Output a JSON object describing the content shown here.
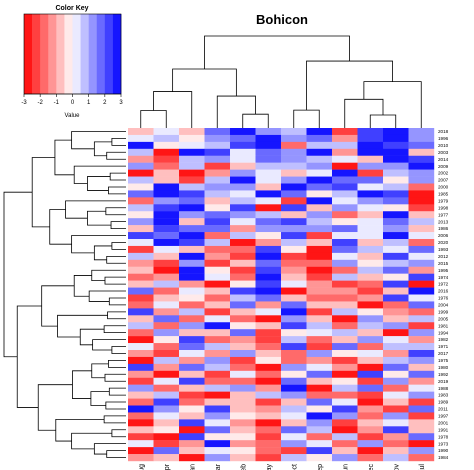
{
  "chart_data": {
    "type": "heatmap",
    "title": "Bohicon",
    "color_key": {
      "title": "Color Key",
      "value_label": "Value",
      "ticks": [
        "-3",
        "-2",
        "-1",
        "0",
        "1",
        "2",
        "3"
      ],
      "range": [
        -3,
        3
      ],
      "low_color": "#ff0000",
      "mid_color": "#ffffff",
      "high_color": "#0000ff"
    },
    "columns": [
      "aug",
      "apr",
      "jan",
      "mar",
      "feb",
      "may",
      "oct",
      "sep",
      "jun",
      "dec",
      "nov",
      "jul"
    ],
    "rows": [
      "2018",
      "1996",
      "2010",
      "2003",
      "2014",
      "2009",
      "2002",
      "2007",
      "2000",
      "1985",
      "1979",
      "1998",
      "1977",
      "2013",
      "1986",
      "2006",
      "2020",
      "1993",
      "2012",
      "2015",
      "1995",
      "1974",
      "1972",
      "2016",
      "1976",
      "2004",
      "1999",
      "2005",
      "1981",
      "1994",
      "1982",
      "1971",
      "2017",
      "1975",
      "1980",
      "1992",
      "2019",
      "1988",
      "1983",
      "1989",
      "2011",
      "1997",
      "2001",
      "1991",
      "1978",
      "1973",
      "1990",
      "1984"
    ],
    "values": [
      [
        -0.8,
        0.3,
        -0.6,
        1.6,
        2.5,
        1.2,
        0.6,
        3.0,
        -2.2,
        2.0,
        2.6,
        1.4
      ],
      [
        0.4,
        0.7,
        -0.3,
        1.3,
        1.6,
        2.8,
        1.1,
        1.8,
        -1.2,
        2.4,
        3.0,
        1.0
      ],
      [
        2.9,
        -0.5,
        0.2,
        0.8,
        2.1,
        2.5,
        -1.6,
        0.6,
        0.8,
        3.0,
        2.2,
        1.6
      ],
      [
        0.5,
        -2.7,
        2.6,
        2.2,
        0.2,
        1.8,
        1.0,
        2.6,
        -1.4,
        2.7,
        3.0,
        -0.8
      ],
      [
        -1.4,
        -2.5,
        0.8,
        1.0,
        0.4,
        1.6,
        1.4,
        0.8,
        0.2,
        -0.6,
        3.0,
        2.4
      ],
      [
        1.2,
        -1.6,
        0.5,
        -2.2,
        -0.9,
        0.8,
        0.6,
        1.2,
        -2.6,
        1.4,
        1.2,
        3.0
      ],
      [
        -2.7,
        -0.6,
        -2.9,
        -1.1,
        1.4,
        0.2,
        -1.0,
        0.3,
        2.6,
        -2.2,
        0.8,
        1.2
      ],
      [
        0.6,
        -0.8,
        -2.4,
        0.6,
        2.6,
        0.0,
        1.3,
        2.6,
        1.8,
        1.6,
        -0.4,
        1.4
      ],
      [
        -0.3,
        2.8,
        0.6,
        1.4,
        1.2,
        -0.6,
        2.8,
        1.6,
        2.2,
        0.4,
        0.6,
        -1.8
      ],
      [
        1.6,
        2.6,
        2.0,
        0.8,
        0.4,
        2.6,
        1.8,
        -0.4,
        0.6,
        2.6,
        2.0,
        -2.6
      ],
      [
        -1.6,
        1.2,
        1.8,
        -0.8,
        0.6,
        0.4,
        -2.4,
        2.8,
        0.3,
        1.2,
        1.6,
        -2.9
      ],
      [
        0.8,
        2.0,
        2.5,
        -0.2,
        2.2,
        -2.8,
        2.2,
        -0.6,
        1.2,
        0.2,
        -0.4,
        -2.2
      ],
      [
        -0.4,
        3.0,
        1.0,
        1.6,
        1.4,
        0.6,
        -0.8,
        1.4,
        -1.6,
        -0.8,
        2.6,
        -0.6
      ],
      [
        1.4,
        2.8,
        -0.6,
        2.0,
        0.2,
        1.8,
        2.4,
        0.6,
        -0.2,
        0.0,
        1.8,
        0.8
      ],
      [
        -0.9,
        2.4,
        1.6,
        1.8,
        -1.2,
        1.0,
        1.2,
        1.0,
        1.8,
        0.2,
        1.4,
        -1.0
      ],
      [
        2.2,
        1.8,
        2.8,
        -1.8,
        0.8,
        -0.2,
        2.0,
        -2.4,
        0.4,
        0.0,
        2.8,
        0.4
      ],
      [
        0.2,
        2.6,
        2.2,
        0.6,
        -2.6,
        -1.2,
        0.6,
        -0.8,
        2.2,
        -0.6,
        0.8,
        -1.8
      ],
      [
        -2.2,
        0.2,
        -0.6,
        -1.6,
        -1.8,
        2.2,
        -0.4,
        -2.6,
        1.6,
        0.8,
        0.4,
        1.6
      ],
      [
        0.6,
        -0.8,
        2.6,
        -1.2,
        -2.4,
        2.6,
        -2.2,
        -2.8,
        0.2,
        -1.0,
        2.2,
        0.2
      ],
      [
        -1.2,
        -2.2,
        1.4,
        -2.4,
        -0.6,
        1.8,
        -1.8,
        -2.0,
        1.4,
        -0.2,
        0.6,
        1.2
      ],
      [
        -0.6,
        -2.6,
        2.8,
        -0.4,
        -2.2,
        2.4,
        -1.4,
        -2.6,
        -1.8,
        0.8,
        1.8,
        -1.4
      ],
      [
        -2.0,
        -1.4,
        2.6,
        0.4,
        -1.6,
        2.8,
        -0.8,
        -2.2,
        0.6,
        -0.6,
        -0.4,
        2.2
      ],
      [
        -1.0,
        0.6,
        -1.2,
        -2.8,
        -0.4,
        2.0,
        0.2,
        -1.4,
        -2.2,
        -1.8,
        2.4,
        -2.6
      ],
      [
        1.8,
        -1.8,
        0.4,
        -0.8,
        2.4,
        2.6,
        -2.6,
        -1.2,
        -1.4,
        -2.4,
        -0.6,
        2.6
      ],
      [
        -2.4,
        -1.0,
        -0.2,
        -1.6,
        0.6,
        1.6,
        -0.6,
        -1.8,
        -2.0,
        -1.2,
        2.0,
        0.4
      ],
      [
        -1.8,
        0.2,
        -2.0,
        -0.6,
        1.8,
        -1.4,
        1.6,
        -0.6,
        -1.0,
        -2.6,
        -1.8,
        1.8
      ],
      [
        2.4,
        -1.4,
        0.8,
        -2.4,
        -0.8,
        0.4,
        2.6,
        -2.4,
        0.6,
        -0.4,
        -1.2,
        -1.6
      ],
      [
        -0.8,
        1.6,
        -1.6,
        0.2,
        -1.8,
        -2.6,
        1.4,
        -1.0,
        -2.8,
        1.2,
        -1.0,
        0.8
      ],
      [
        0.6,
        -2.0,
        1.2,
        2.6,
        -0.4,
        -0.8,
        2.2,
        0.8,
        -1.6,
        0.6,
        1.4,
        -2.2
      ],
      [
        -1.6,
        1.2,
        -0.8,
        -0.6,
        1.6,
        -2.2,
        -0.2,
        0.4,
        0.6,
        -0.8,
        -2.8,
        1.4
      ],
      [
        -2.6,
        -0.4,
        2.2,
        -2.0,
        -1.2,
        -2.4,
        0.8,
        -1.6,
        -0.6,
        1.4,
        0.2,
        -1.2
      ],
      [
        0.4,
        -1.6,
        1.6,
        0.8,
        -0.6,
        -1.8,
        2.4,
        -2.4,
        1.6,
        -2.0,
        0.8,
        0.6
      ],
      [
        -1.4,
        -2.4,
        0.2,
        -1.2,
        1.2,
        -1.0,
        -1.6,
        1.2,
        -0.2,
        0.4,
        -1.4,
        2.0
      ],
      [
        -2.8,
        0.8,
        -1.4,
        1.2,
        -2.2,
        -0.4,
        -2.0,
        -1.2,
        -2.4,
        -1.0,
        0.6,
        1.0
      ],
      [
        2.0,
        -1.2,
        1.8,
        0.6,
        -1.6,
        -2.8,
        1.0,
        0.2,
        -1.2,
        -2.8,
        1.6,
        -0.8
      ],
      [
        -1.2,
        -2.6,
        -1.0,
        -2.4,
        0.2,
        -1.6,
        -0.4,
        1.6,
        -2.6,
        2.0,
        -0.2,
        1.8
      ],
      [
        -2.4,
        0.4,
        2.4,
        -1.8,
        -2.0,
        -2.6,
        1.8,
        -0.8,
        -0.4,
        -2.2,
        1.2,
        -1.4
      ],
      [
        1.0,
        -1.8,
        -0.6,
        0.6,
        1.4,
        -1.2,
        2.6,
        -2.8,
        0.8,
        1.6,
        -1.6,
        0.2
      ],
      [
        -0.6,
        0.8,
        -2.2,
        -2.6,
        -0.8,
        0.8,
        1.2,
        -2.0,
        -1.8,
        -2.4,
        0.4,
        1.4
      ],
      [
        -2.0,
        2.4,
        -1.8,
        -0.8,
        -0.6,
        -2.2,
        -0.6,
        1.8,
        0.4,
        -2.6,
        -1.0,
        -2.4
      ],
      [
        2.6,
        1.4,
        -0.2,
        2.2,
        -0.8,
        -1.4,
        0.8,
        -0.4,
        2.4,
        -1.2,
        -2.4,
        1.8
      ],
      [
        -1.8,
        0.2,
        -0.8,
        1.2,
        -0.4,
        -0.6,
        0.4,
        2.6,
        1.4,
        -2.0,
        1.0,
        -2.4
      ],
      [
        -2.6,
        -1.0,
        2.2,
        0.4,
        -1.2,
        -2.8,
        -0.6,
        1.4,
        -2.2,
        -0.8,
        0.2,
        -1.0
      ],
      [
        -1.0,
        -0.4,
        -2.8,
        1.6,
        -0.6,
        -1.8,
        1.6,
        0.6,
        -2.6,
        -1.4,
        2.2,
        -0.6
      ],
      [
        -2.2,
        -2.8,
        2.0,
        -0.4,
        -0.2,
        -2.4,
        0.4,
        -1.8,
        0.6,
        -2.2,
        -1.2,
        1.6
      ],
      [
        0.2,
        -2.4,
        -1.2,
        2.8,
        -1.4,
        -2.0,
        1.2,
        0.2,
        -1.6,
        1.0,
        -2.0,
        -2.6
      ],
      [
        -2.6,
        1.8,
        -0.6,
        0.4,
        -0.4,
        -1.6,
        -2.4,
        2.2,
        -0.8,
        -2.8,
        -0.6,
        1.2
      ],
      [
        -1.4,
        -0.8,
        -2.6,
        1.2,
        -0.6,
        -2.2,
        0.8,
        -0.4,
        1.0,
        -1.8,
        0.6,
        -2.0
      ]
    ]
  }
}
